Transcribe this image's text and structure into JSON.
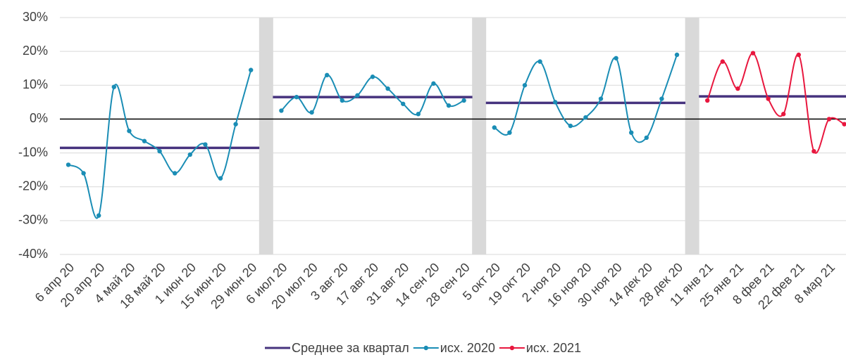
{
  "chart_data": {
    "type": "line",
    "categories": [
      "6 апр 20",
      null,
      "20 апр 20",
      null,
      "4 май 20",
      null,
      "18 май 20",
      null,
      "1 июн 20",
      null,
      "15 июн 20",
      null,
      "29 июн 20",
      null,
      "6 июл 20",
      null,
      "20 июл 20",
      null,
      "3 авг 20",
      null,
      "17 авг 20",
      null,
      "31 авг 20",
      null,
      "14 сен 20",
      null,
      "28 сен 20",
      null,
      "5 окт 20",
      null,
      "19 окт 20",
      null,
      "2 ноя 20",
      null,
      "16 ноя 20",
      null,
      "30 ноя 20",
      null,
      "14 дек 20",
      null,
      "28 дек 20",
      null,
      "11 янв 21",
      null,
      "25 янв 21",
      null,
      "8 фев 21",
      null,
      "22 фев 21",
      null,
      "8 мар 21",
      null
    ],
    "series": [
      {
        "name": "Среднее за квартал",
        "color": "#46337e",
        "markers": false,
        "smooth": false,
        "values": [
          -8.5,
          -8.5,
          -8.5,
          -8.5,
          -8.5,
          -8.5,
          -8.5,
          -8.5,
          -8.5,
          -8.5,
          -8.5,
          -8.5,
          -8.5,
          null,
          6.5,
          6.5,
          6.5,
          6.5,
          6.5,
          6.5,
          6.5,
          6.5,
          6.5,
          6.5,
          6.5,
          6.5,
          6.5,
          null,
          4.8,
          4.8,
          4.8,
          4.8,
          4.8,
          4.8,
          4.8,
          4.8,
          4.8,
          4.8,
          4.8,
          4.8,
          4.8,
          null,
          6.7,
          6.7,
          6.7,
          6.7,
          6.7,
          6.7,
          6.7,
          6.7,
          6.7,
          6.7
        ]
      },
      {
        "name": "исх. 2020",
        "color": "#1a8db5",
        "markers": true,
        "smooth": true,
        "values": [
          -13.5,
          -16,
          -28.5,
          9.5,
          -3.5,
          -6.5,
          -9.5,
          -16,
          -10.5,
          -7.5,
          -17.5,
          -1.5,
          14.5,
          null,
          2.5,
          6.5,
          2,
          13,
          5.5,
          7,
          12.5,
          9,
          4.5,
          1.5,
          10.5,
          4,
          5.5,
          null,
          -2.5,
          -4,
          10,
          17,
          5,
          -2,
          0.5,
          6,
          18,
          -4,
          -5.5,
          6,
          19,
          null,
          null,
          null,
          null,
          null,
          null,
          null,
          null,
          null,
          null,
          null
        ]
      },
      {
        "name": "исх. 2021",
        "color": "#e8173e",
        "markers": true,
        "smooth": true,
        "values": [
          null,
          null,
          null,
          null,
          null,
          null,
          null,
          null,
          null,
          null,
          null,
          null,
          null,
          null,
          null,
          null,
          null,
          null,
          null,
          null,
          null,
          null,
          null,
          null,
          null,
          null,
          null,
          null,
          null,
          null,
          null,
          null,
          null,
          null,
          null,
          null,
          null,
          null,
          null,
          null,
          null,
          null,
          5.5,
          17,
          9,
          19.5,
          6,
          1.5,
          19,
          -9.5,
          0,
          -1.5
        ]
      }
    ],
    "ylim": [
      -40,
      30
    ],
    "yticks": [
      {
        "value": -40,
        "label": "-40%"
      },
      {
        "value": -30,
        "label": "-30%"
      },
      {
        "value": -20,
        "label": "-20%"
      },
      {
        "value": -10,
        "label": "-10%"
      },
      {
        "value": 0,
        "label": "0%"
      },
      {
        "value": 10,
        "label": "10%"
      },
      {
        "value": 20,
        "label": "20%"
      },
      {
        "value": 30,
        "label": "30%"
      }
    ],
    "grid": true,
    "legend": "bottom"
  }
}
